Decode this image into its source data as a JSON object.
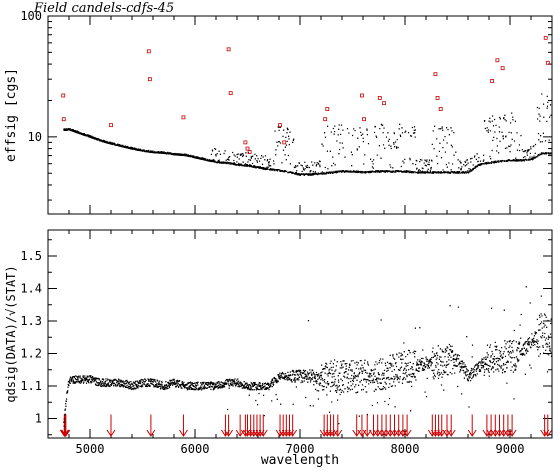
{
  "chart_data": [
    {
      "type": "scatter",
      "title": "Field candels-cdfs-45",
      "xlabel": "",
      "ylabel": "effsig [cgs]",
      "xlim": [
        4600,
        9400
      ],
      "ylim": [
        2.3,
        100
      ],
      "y_scale": "log",
      "y_ticks": [
        10,
        100
      ],
      "y_tick_labels": [
        "10",
        "100"
      ],
      "grid": false,
      "series": [
        {
          "color": "#000000",
          "marker": "dot",
          "x": [
            4750,
            4800,
            4900,
            5000,
            5100,
            5200,
            5300,
            5400,
            5500,
            5600,
            5700,
            5800,
            5900,
            6000,
            6100,
            6200,
            6300,
            6400,
            6500,
            6600,
            6700,
            6800,
            6900,
            7000,
            7100,
            7200,
            7300,
            7400,
            7500,
            7600,
            7700,
            7800,
            7900,
            8000,
            8100,
            8200,
            8300,
            8400,
            8500,
            8600,
            8700,
            8800,
            8900,
            9000,
            9100,
            9200,
            9300
          ],
          "y": [
            11.3,
            11.4,
            10.6,
            9.9,
            9.2,
            8.7,
            8.3,
            7.9,
            7.6,
            7.4,
            7.3,
            7.1,
            7.0,
            6.7,
            6.4,
            6.1,
            6.0,
            5.8,
            5.7,
            5.5,
            5.3,
            5.2,
            5.0,
            4.8,
            4.8,
            4.9,
            5.0,
            5.1,
            5.1,
            5.0,
            5.1,
            5.1,
            5.1,
            5.1,
            5.0,
            5.0,
            5.0,
            5.0,
            5.0,
            5.0,
            5.8,
            6.0,
            6.2,
            6.3,
            6.3,
            6.4,
            7.2
          ]
        },
        {
          "color": "#cc0000",
          "marker": "open-square",
          "x": [
            4745,
            4750,
            5200,
            5560,
            5570,
            5890,
            6320,
            6340,
            6480,
            6500,
            6520,
            6810,
            6850,
            7240,
            7260,
            7590,
            7610,
            7760,
            7800,
            8290,
            8310,
            8340,
            8830,
            8880,
            8930,
            9340,
            9360
          ],
          "y": [
            22,
            14,
            12.5,
            51,
            30,
            14.5,
            53,
            23,
            9,
            8,
            7.5,
            12.5,
            9,
            14,
            17,
            22,
            14,
            21,
            19,
            33,
            21,
            17,
            29,
            43,
            37,
            66,
            41
          ]
        }
      ],
      "markers": {
        "color": "#cc0000",
        "type": "down-arrow"
      }
    },
    {
      "type": "scatter",
      "xlabel": "wavelength",
      "ylabel": "qdsig(DATA)/√(STAT)",
      "xlim": [
        4600,
        9400
      ],
      "ylim": [
        0.94,
        1.58
      ],
      "x_ticks": [
        5000,
        6000,
        7000,
        8000,
        9000
      ],
      "x_tick_labels": [
        "5000",
        "6000",
        "7000",
        "8000",
        "9000"
      ],
      "y_ticks": [
        1.0,
        1.1,
        1.2,
        1.3,
        1.4,
        1.5
      ],
      "y_tick_labels": [
        "1",
        "1.1",
        "1.2",
        "1.3",
        "1.4",
        "1.5"
      ],
      "grid": false,
      "series": [
        {
          "color": "#000000",
          "marker": "dot",
          "x": [
            4750,
            4800,
            4900,
            5000,
            5100,
            5200,
            5300,
            5400,
            5500,
            5600,
            5700,
            5800,
            5900,
            6000,
            6100,
            6200,
            6300,
            6400,
            6500,
            6600,
            6700,
            6800,
            6900,
            7000,
            7100,
            7200,
            7300,
            7400,
            7500,
            7600,
            7700,
            7800,
            7900,
            8000,
            8100,
            8200,
            8300,
            8400,
            8500,
            8600,
            8700,
            8800,
            8900,
            9000,
            9100,
            9200,
            9300
          ],
          "y": [
            1.0,
            1.12,
            1.12,
            1.12,
            1.11,
            1.11,
            1.11,
            1.1,
            1.11,
            1.11,
            1.1,
            1.11,
            1.1,
            1.1,
            1.1,
            1.1,
            1.11,
            1.11,
            1.1,
            1.1,
            1.1,
            1.13,
            1.13,
            1.13,
            1.13,
            1.12,
            1.13,
            1.13,
            1.13,
            1.13,
            1.13,
            1.14,
            1.15,
            1.16,
            1.16,
            1.17,
            1.17,
            1.18,
            1.18,
            1.13,
            1.16,
            1.18,
            1.19,
            1.19,
            1.2,
            1.24,
            1.26
          ]
        }
      ],
      "telluric_markers_x": [
        4755,
        4760,
        4765,
        4770,
        5200,
        5580,
        5890,
        6290,
        6320,
        6430,
        6480,
        6500,
        6530,
        6560,
        6590,
        6620,
        6650,
        6810,
        6840,
        6870,
        6900,
        6930,
        7230,
        7260,
        7290,
        7320,
        7360,
        7540,
        7590,
        7640,
        7700,
        7740,
        7780,
        7820,
        7860,
        7900,
        7940,
        7980,
        8020,
        8260,
        8290,
        8320,
        8350,
        8400,
        8440,
        8640,
        8780,
        8820,
        8860,
        8900,
        8940,
        8980,
        9020,
        9330,
        9360
      ]
    }
  ]
}
